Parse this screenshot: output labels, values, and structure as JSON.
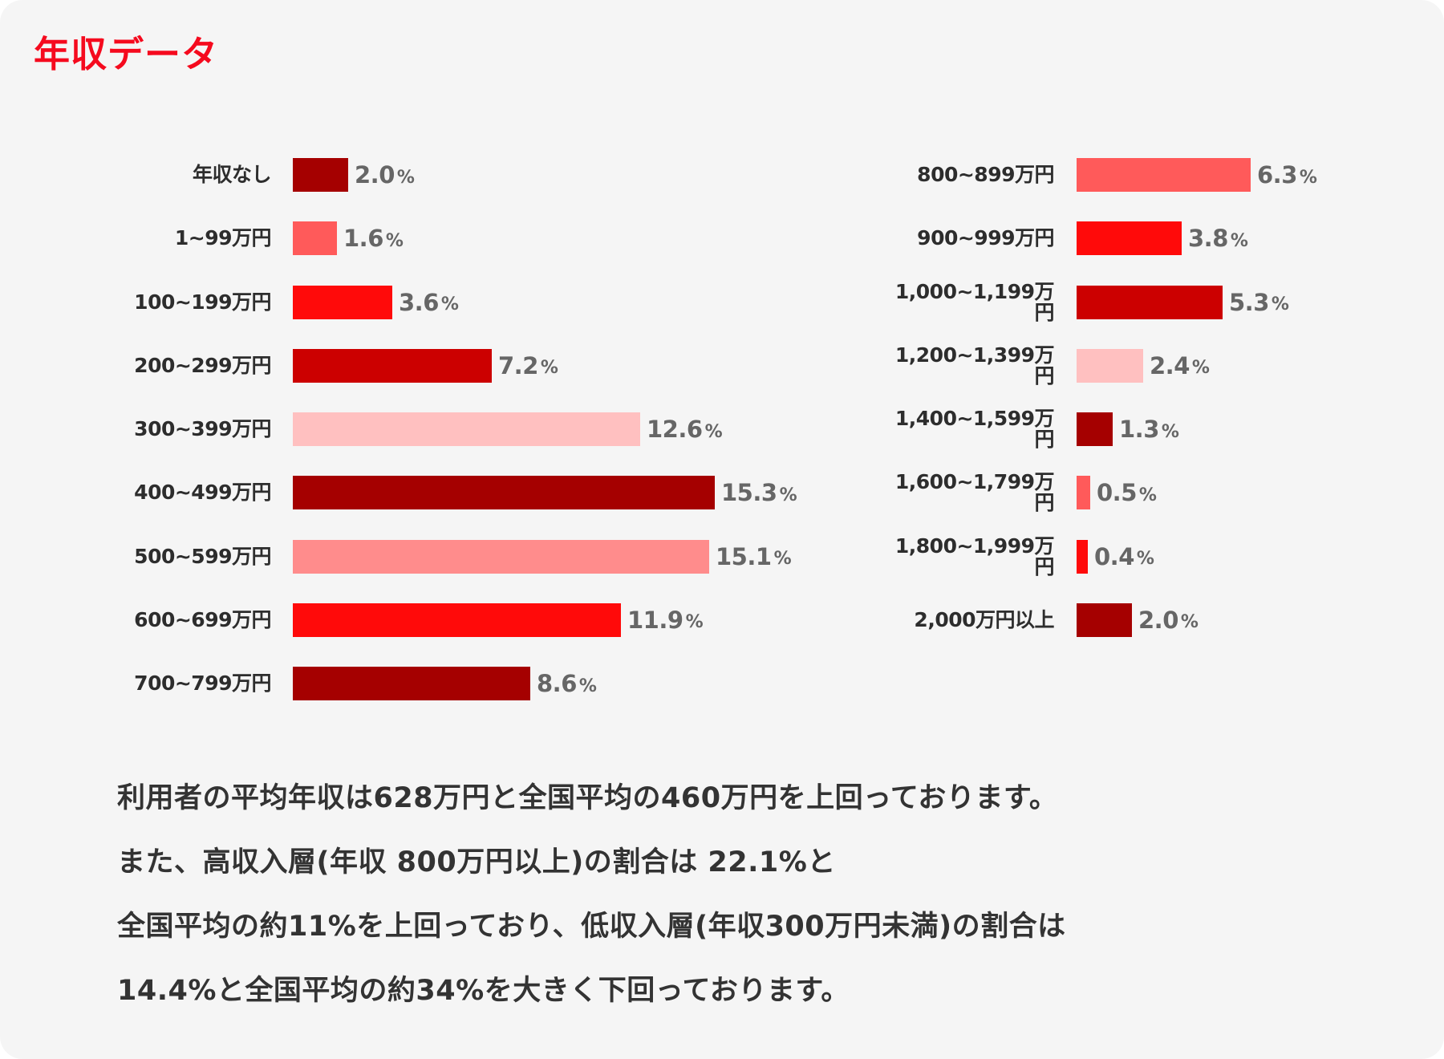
{
  "title": "年収データ",
  "chart_data": {
    "type": "bar",
    "orientation": "horizontal",
    "title": "年収データ",
    "xlabel": "",
    "ylabel": "",
    "unit": "%",
    "grid": false,
    "legend": null,
    "categories": [
      "年収なし",
      "1~99万円",
      "100~199万円",
      "200~299万円",
      "300~399万円",
      "400~499万円",
      "500~599万円",
      "600~699万円",
      "700~799万円",
      "800~899万円",
      "900~999万円",
      "1,000~1,199万円",
      "1,200~1,399万円",
      "1,400~1,599万円",
      "1,600~1,799万円",
      "1,800~1,999万円",
      "2,000万円以上"
    ],
    "values": [
      2.0,
      1.6,
      3.6,
      7.2,
      12.6,
      15.3,
      15.1,
      11.9,
      8.6,
      6.3,
      3.8,
      5.3,
      2.4,
      1.3,
      0.5,
      0.4,
      2.0
    ]
  },
  "left_column": [
    {
      "label": "年収なし",
      "value": 2.0,
      "display": "2.0",
      "color": "#a50000"
    },
    {
      "label": "1~99万円",
      "value": 1.6,
      "display": "1.6",
      "color": "#ff5a5a"
    },
    {
      "label": "100~199万円",
      "value": 3.6,
      "display": "3.6",
      "color": "#ff0a0a"
    },
    {
      "label": "200~299万円",
      "value": 7.2,
      "display": "7.2",
      "color": "#cc0000"
    },
    {
      "label": "300~399万円",
      "value": 12.6,
      "display": "12.6",
      "color": "#ffc0c0"
    },
    {
      "label": "400~499万円",
      "value": 15.3,
      "display": "15.3",
      "color": "#a50000"
    },
    {
      "label": "500~599万円",
      "value": 15.1,
      "display": "15.1",
      "color": "#ff8c8c"
    },
    {
      "label": "600~699万円",
      "value": 11.9,
      "display": "11.9",
      "color": "#ff0a0a"
    },
    {
      "label": "700~799万円",
      "value": 8.6,
      "display": "8.6",
      "color": "#a50000"
    }
  ],
  "right_column": [
    {
      "label": "800~899万円",
      "value": 6.3,
      "display": "6.3",
      "color": "#ff5a5a"
    },
    {
      "label": "900~999万円",
      "value": 3.8,
      "display": "3.8",
      "color": "#ff0a0a"
    },
    {
      "label": "1,000~1,199万円",
      "value": 5.3,
      "display": "5.3",
      "color": "#cc0000"
    },
    {
      "label": "1,200~1,399万円",
      "value": 2.4,
      "display": "2.4",
      "color": "#ffc0c0"
    },
    {
      "label": "1,400~1,599万円",
      "value": 1.3,
      "display": "1.3",
      "color": "#a50000"
    },
    {
      "label": "1,600~1,799万円",
      "value": 0.5,
      "display": "0.5",
      "color": "#ff5a5a"
    },
    {
      "label": "1,800~1,999万円",
      "value": 0.4,
      "display": "0.4",
      "color": "#ff0a0a"
    },
    {
      "label": "2,000万円以上",
      "value": 2.0,
      "display": "2.0",
      "color": "#a50000"
    }
  ],
  "percent_sign": "%",
  "summary": [
    "利用者の平均年収は628万円と全国平均の460万円を上回っております。",
    "また、高収入層(年収 800万円以上)の割合は 22.1%と",
    "全国平均の約11%を上回っており、低収入層(年収300万円未満)の割合は",
    "14.4%と全国平均の約34%を大きく下回っております。"
  ],
  "colors": {
    "title": "#f50a1e",
    "background": "#f5f5f5",
    "label_text": "#2d2d2d",
    "value_text": "#666666"
  }
}
